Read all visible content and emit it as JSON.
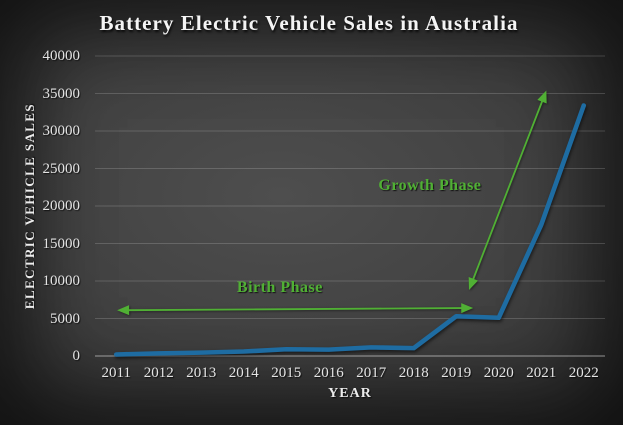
{
  "chart_data": {
    "type": "line",
    "title": "Battery Electric Vehicle Sales in Australia",
    "xlabel": "YEAR",
    "ylabel": "ELECTRIC VEHICLE SALES",
    "categories": [
      2011,
      2012,
      2013,
      2014,
      2015,
      2016,
      2017,
      2018,
      2019,
      2020,
      2021,
      2022
    ],
    "series": [
      {
        "name": "Electric Vehicle Sales",
        "values": [
          200,
          350,
          450,
          600,
          900,
          850,
          1150,
          1050,
          5300,
          5100,
          17500,
          33400
        ],
        "color": "#1e6ca2"
      }
    ],
    "ylim": [
      0,
      40000
    ],
    "ytick_step": 5000,
    "grid": true,
    "legend": "none",
    "line_smooth": false,
    "annotations": [
      {
        "label": "Birth Phase",
        "type": "double-arrow",
        "color": "#50b034",
        "from": {
          "year": 2011.02,
          "value": 6100
        },
        "to": {
          "year": 2019.4,
          "value": 6400
        },
        "label_pos": {
          "year": 2014.85,
          "value": 9050
        }
      },
      {
        "label": "Growth Phase",
        "type": "double-arrow",
        "color": "#50b034",
        "from": {
          "year": 2019.3,
          "value": 8800
        },
        "to": {
          "year": 2021.12,
          "value": 35400
        },
        "label_pos": {
          "year": 2018.38,
          "value": 22650
        }
      }
    ]
  },
  "colors": {
    "background_center": "#4e4e4e",
    "background_edge": "#252525",
    "gridline": "rgba(255,255,255,0.17)",
    "axis_line": "rgba(255,255,255,0.42)",
    "tick_text": "#e4e4e4",
    "title_text": "#f5f5f5",
    "line": "#1e6ca2",
    "annotation": "#50b034"
  }
}
